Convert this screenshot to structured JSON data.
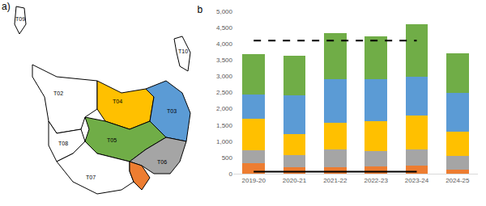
{
  "map": {
    "title": "a)",
    "regions": [
      {
        "label": "T09",
        "color": "#ffffff"
      },
      {
        "label": "T10",
        "color": "#ffffff"
      },
      {
        "label": "T02",
        "color": "#ffffff"
      },
      {
        "label": "T04",
        "color": "#ffc000"
      },
      {
        "label": "T03",
        "color": "#5b9bd5"
      },
      {
        "label": "T08",
        "color": "#ffffff"
      },
      {
        "label": "T05",
        "color": "#70ad47"
      },
      {
        "label": "T06",
        "color": "#a5a5a5"
      },
      {
        "label": "T07",
        "color": "#ffffff"
      },
      {
        "color": "#ed7d31"
      }
    ]
  },
  "chart_data": {
    "type": "bar",
    "title": "b",
    "stacked": true,
    "grid": false,
    "categories": [
      "2019-20",
      "2020-21",
      "2021-22",
      "2022-23",
      "2023-24",
      "2024-25"
    ],
    "ylim": [
      0,
      5000
    ],
    "yticks": [
      0,
      500,
      {
        "value": 1000,
        "label": "1,000"
      },
      {
        "value": 1500,
        "label": "1,500"
      },
      {
        "value": 2000,
        "label": "2,000"
      },
      {
        "value": 2500,
        "label": "2,500"
      },
      {
        "value": 3000,
        "label": "3,000"
      },
      {
        "value": 3500,
        "label": "3,500"
      },
      {
        "value": 4000,
        "label": "4,000"
      },
      {
        "value": 4500,
        "label": "4,500"
      },
      {
        "value": 5000,
        "label": "5,000"
      }
    ],
    "series": [
      {
        "type": "bar",
        "color": "#ed7d31",
        "values": [
          330,
          200,
          200,
          220,
          250,
          120
        ]
      },
      {
        "type": "bar",
        "color": "#a5a5a5",
        "values": [
          390,
          380,
          550,
          480,
          490,
          420
        ]
      },
      {
        "type": "bar",
        "color": "#ffc000",
        "values": [
          960,
          640,
          820,
          920,
          1040,
          760
        ]
      },
      {
        "type": "bar",
        "color": "#5b9bd5",
        "values": [
          750,
          1200,
          1350,
          1280,
          1210,
          1190
        ]
      },
      {
        "type": "bar",
        "color": "#70ad47",
        "values": [
          1250,
          1220,
          1420,
          1330,
          1610,
          1210
        ]
      },
      {
        "type": "line",
        "color": "#000000",
        "line_style": "dashed",
        "values": [
          4100,
          4100,
          4100,
          4100,
          4100,
          null
        ]
      },
      {
        "type": "line",
        "color": "#000000",
        "line_style": "solid",
        "values": [
          60,
          60,
          60,
          60,
          60,
          null
        ]
      }
    ]
  }
}
